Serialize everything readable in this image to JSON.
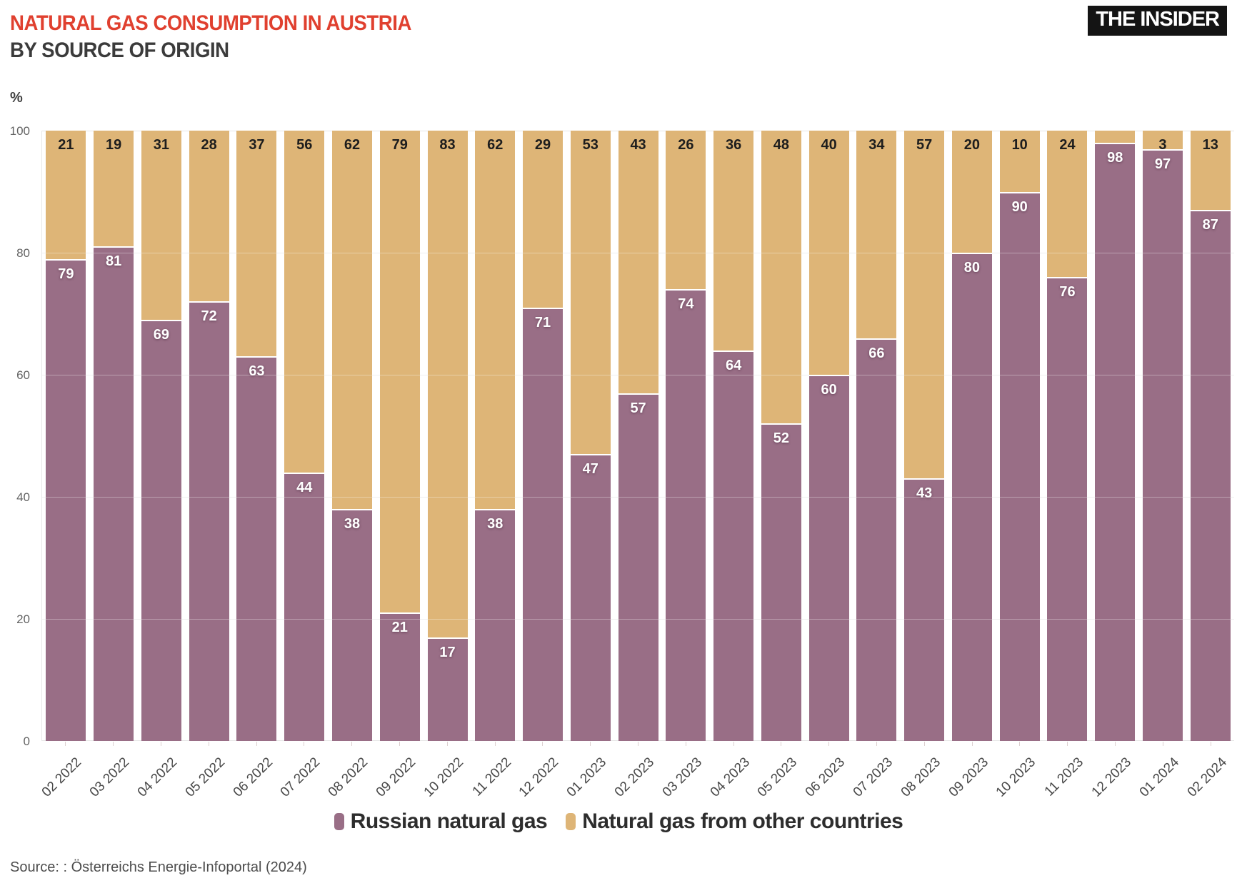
{
  "header": {
    "title": "NATURAL GAS CONSUMPTION IN AUSTRIA",
    "subtitle": "BY SOURCE OF ORIGIN",
    "logo": "THE INSIDER"
  },
  "chart_data": {
    "type": "bar",
    "stacked": true,
    "title": "Natural gas consumption in Austria by source of origin",
    "unit_label": "%",
    "ylim": [
      0,
      100
    ],
    "yticks": [
      0,
      20,
      40,
      60,
      80,
      100
    ],
    "grid": true,
    "legend_position": "bottom",
    "value_label_min": 3,
    "categories": [
      "02 2022",
      "03 2022",
      "04 2022",
      "05 2022",
      "06 2022",
      "07 2022",
      "08 2022",
      "09 2022",
      "10 2022",
      "11 2022",
      "12 2022",
      "01 2023",
      "02 2023",
      "03 2023",
      "04 2023",
      "05 2023",
      "06 2023",
      "07 2023",
      "08 2023",
      "09 2023",
      "10 2023",
      "11 2023",
      "12 2023",
      "01 2024",
      "02 2024"
    ],
    "series": [
      {
        "name": "Russian natural gas",
        "color": "#996e86",
        "values": [
          79,
          81,
          69,
          72,
          63,
          44,
          38,
          21,
          17,
          38,
          71,
          47,
          57,
          74,
          64,
          52,
          60,
          66,
          43,
          80,
          90,
          76,
          98,
          97,
          87
        ]
      },
      {
        "name": "Natural gas from other countries",
        "color": "#deb577",
        "values": [
          21,
          19,
          31,
          28,
          37,
          56,
          62,
          79,
          83,
          62,
          29,
          53,
          43,
          26,
          36,
          48,
          40,
          34,
          57,
          20,
          10,
          24,
          2,
          3,
          13
        ]
      }
    ]
  },
  "source": "Source: : Österreichs Energie-Infoportal (2024)"
}
